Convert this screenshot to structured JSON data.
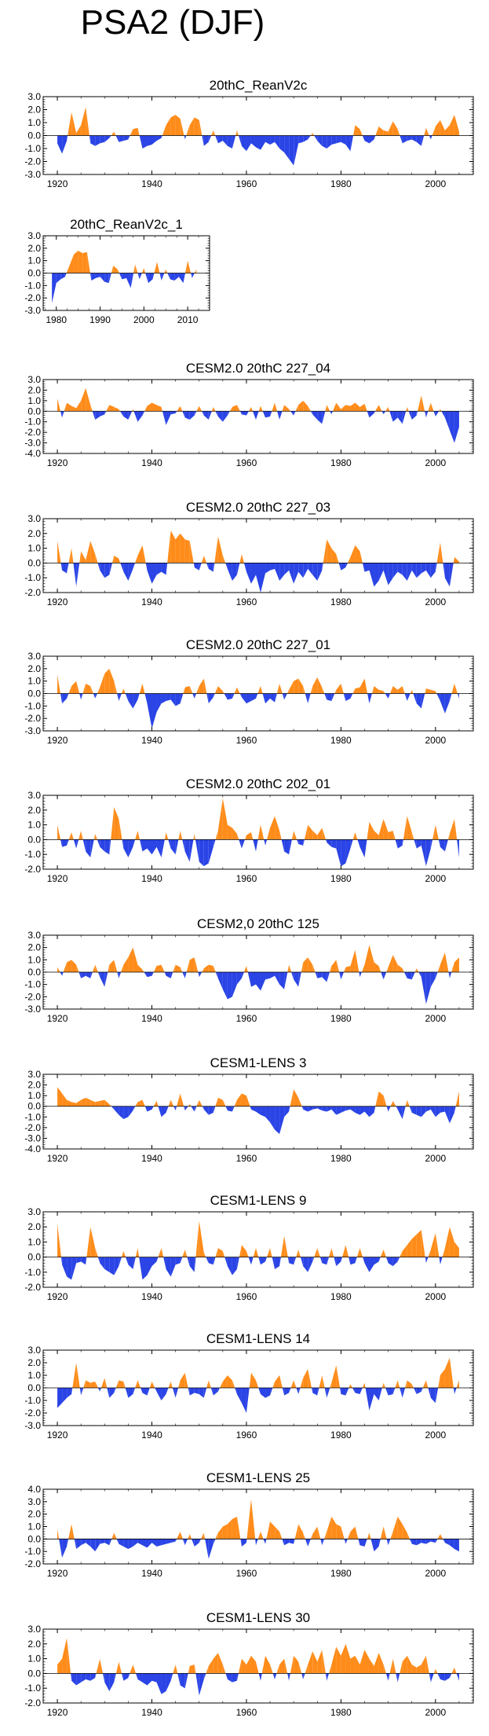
{
  "page_title": "PSA2 (DJF)",
  "colors": {
    "positive": "#ff8c1a",
    "negative": "#2a44e6",
    "axis": "#000000"
  },
  "chart_data": [
    {
      "type": "area",
      "title": "20thC_ReanV2c",
      "x_start": 1920,
      "x_end": 2005,
      "xlim": [
        1917,
        2008
      ],
      "xticks": [
        1920,
        1940,
        1960,
        1980,
        2000
      ],
      "ylim": [
        -3.0,
        3.0
      ],
      "yticks": [
        3.0,
        2.0,
        1.0,
        0.0,
        -1.0,
        -2.0,
        -3.0
      ],
      "values": [
        -0.6,
        -1.4,
        -0.4,
        1.8,
        0.2,
        0.8,
        2.2,
        -0.6,
        -0.8,
        -0.6,
        -0.5,
        -0.2,
        0.3,
        -0.5,
        -0.4,
        -0.3,
        0.5,
        0.6,
        -1.0,
        -0.8,
        -0.7,
        -0.4,
        -0.2,
        0.8,
        1.4,
        1.6,
        1.3,
        -0.3,
        0.8,
        1.4,
        1.2,
        -0.8,
        -0.5,
        0.4,
        -0.6,
        -0.4,
        -0.8,
        -1.0,
        0.4,
        -0.8,
        -1.2,
        -0.6,
        -0.9,
        -1.1,
        -0.5,
        -0.7,
        -0.5,
        -1.0,
        -1.3,
        -1.8,
        -2.3,
        -0.6,
        -0.5,
        -0.3,
        0.2,
        -0.4,
        -0.8,
        -1.0,
        -0.7,
        -0.6,
        -0.5,
        -0.7,
        -1.2,
        0.8,
        0.5,
        -0.4,
        -0.6,
        -0.3,
        0.7,
        0.4,
        0.3,
        1.1,
        0.5,
        -0.6,
        -0.4,
        -0.3,
        -0.5,
        -0.8,
        0.6,
        -0.3,
        0.7,
        1.2,
        0.4,
        0.8,
        1.6,
        0.3
      ]
    },
    {
      "type": "area",
      "title": "20thC_ReanV2c_1",
      "x_start": 1979,
      "x_end": 2012,
      "xlim": [
        1977,
        2015
      ],
      "xticks": [
        1980,
        1990,
        2000,
        2010
      ],
      "ylim": [
        -3.0,
        3.0
      ],
      "yticks": [
        3.0,
        2.0,
        1.0,
        0.0,
        -1.0,
        -2.0,
        -3.0
      ],
      "values": [
        -2.4,
        -0.8,
        -0.5,
        -0.3,
        0.6,
        1.5,
        1.8,
        1.6,
        1.7,
        -0.6,
        -0.4,
        -0.3,
        -0.7,
        -0.8,
        0.6,
        0.3,
        -0.5,
        -0.4,
        -1.2,
        0.7,
        -0.5,
        0.4,
        -0.8,
        -0.5,
        0.9,
        -0.6,
        0.3,
        -0.5,
        -0.6,
        -0.3,
        -0.8,
        1.0,
        -0.4,
        0.3
      ]
    },
    {
      "type": "area",
      "title": "CESM2.0 20thC 227_04",
      "x_start": 1920,
      "x_end": 2005,
      "xlim": [
        1917,
        2008
      ],
      "xticks": [
        1920,
        1940,
        1960,
        1980,
        2000
      ],
      "ylim": [
        -4.0,
        3.0
      ],
      "yticks": [
        3.0,
        2.0,
        1.0,
        0.0,
        -1.0,
        -2.0,
        -3.0,
        -4.0
      ],
      "values": [
        1.2,
        -0.6,
        0.8,
        0.5,
        0.3,
        1.0,
        2.2,
        0.6,
        -0.8,
        -0.5,
        -0.3,
        0.6,
        0.4,
        0.2,
        -0.5,
        -0.8,
        0.2,
        -1.0,
        -0.4,
        0.5,
        0.8,
        0.6,
        0.4,
        -1.3,
        -0.3,
        -0.2,
        0.5,
        -0.6,
        -0.8,
        -0.4,
        0.5,
        -0.4,
        -0.8,
        0.4,
        -0.5,
        -1.0,
        -0.4,
        0.4,
        0.6,
        -0.3,
        -0.4,
        0.4,
        -0.8,
        0.5,
        -0.6,
        -0.5,
        0.8,
        -0.8,
        0.6,
        0.2,
        -0.4,
        0.6,
        1.0,
        0.5,
        -0.3,
        -0.8,
        -1.2,
        0.6,
        -0.3,
        0.8,
        0.2,
        0.6,
        0.5,
        0.8,
        0.4,
        0.7,
        -0.6,
        -0.2,
        0.6,
        -0.3,
        0.4,
        -1.0,
        -0.6,
        -1.2,
        0.4,
        -0.8,
        -0.4,
        1.5,
        -0.6,
        0.8,
        -0.5,
        0.2,
        -0.6,
        -1.8,
        -3.0,
        -1.5
      ]
    },
    {
      "type": "area",
      "title": "CESM2.0 20thC 227_03",
      "x_start": 1920,
      "x_end": 2005,
      "xlim": [
        1917,
        2008
      ],
      "xticks": [
        1920,
        1940,
        1960,
        1980,
        2000
      ],
      "ylim": [
        -2.0,
        3.0
      ],
      "yticks": [
        3.0,
        2.0,
        1.0,
        0.0,
        -1.0,
        -2.0
      ],
      "values": [
        1.5,
        -0.5,
        -0.7,
        1.0,
        -1.6,
        0.8,
        0.2,
        1.5,
        0.6,
        -0.5,
        -1.0,
        -0.8,
        0.5,
        0.3,
        -0.6,
        -1.2,
        -0.4,
        0.5,
        1.2,
        -0.5,
        -1.4,
        -0.8,
        -0.6,
        -0.8,
        2.2,
        1.6,
        2.0,
        1.6,
        1.5,
        -0.3,
        -0.5,
        0.5,
        -0.4,
        -0.6,
        1.8,
        0.5,
        -0.4,
        -1.2,
        -0.8,
        0.6,
        -0.6,
        -1.4,
        -0.8,
        -2.0,
        -0.7,
        -0.5,
        -0.4,
        -1.2,
        -0.8,
        -0.5,
        -1.4,
        -0.6,
        -1.0,
        -0.4,
        -0.8,
        -1.2,
        -0.5,
        1.6,
        1.0,
        0.6,
        -0.5,
        -0.3,
        0.4,
        1.2,
        0.8,
        -0.6,
        -0.5,
        -1.6,
        -1.2,
        -0.5,
        -1.5,
        -1.0,
        -0.6,
        -0.8,
        -1.2,
        -0.5,
        -1.0,
        -0.7,
        -0.5,
        -1.0,
        -0.6,
        1.4,
        -1.0,
        -1.6,
        0.4,
        0.1
      ]
    },
    {
      "type": "area",
      "title": "CESM2.0 20thC 227_01",
      "x_start": 1920,
      "x_end": 2005,
      "xlim": [
        1917,
        2008
      ],
      "xticks": [
        1920,
        1940,
        1960,
        1980,
        2000
      ],
      "ylim": [
        -3.0,
        3.0
      ],
      "yticks": [
        3.0,
        2.0,
        1.0,
        0.0,
        -1.0,
        -2.0,
        -3.0
      ],
      "values": [
        1.5,
        -0.8,
        -0.4,
        0.6,
        1.0,
        -0.5,
        0.8,
        0.6,
        -0.4,
        0.5,
        1.6,
        2.0,
        1.0,
        -0.6,
        0.4,
        -0.6,
        -1.2,
        -0.5,
        0.8,
        -0.8,
        -2.8,
        -1.5,
        -0.8,
        -0.6,
        -0.5,
        -1.0,
        -0.8,
        0.5,
        0.6,
        -0.4,
        0.6,
        1.2,
        -0.8,
        -0.3,
        0.6,
        0.2,
        -0.5,
        -0.4,
        0.5,
        -0.3,
        -0.8,
        -0.6,
        -0.4,
        0.6,
        -0.8,
        -0.4,
        -0.7,
        0.8,
        -0.5,
        0.3,
        1.0,
        1.2,
        0.6,
        -0.8,
        0.6,
        1.3,
        0.5,
        -0.5,
        -0.6,
        0.3,
        0.8,
        -0.6,
        -0.4,
        0.4,
        0.5,
        1.2,
        -0.8,
        0.6,
        0.3,
        0.2,
        -0.4,
        0.6,
        0.3,
        0.6,
        -0.6,
        0.3,
        -0.8,
        -1.2,
        0.4,
        0.3,
        0.2,
        -0.6,
        -1.6,
        -0.6,
        0.8,
        -0.4
      ]
    },
    {
      "type": "area",
      "title": "CESM2.0 20thC 202_01",
      "x_start": 1920,
      "x_end": 2005,
      "xlim": [
        1917,
        2008
      ],
      "xticks": [
        1920,
        1940,
        1960,
        1980,
        2000
      ],
      "ylim": [
        -2.0,
        3.0
      ],
      "yticks": [
        3.0,
        2.0,
        1.0,
        0.0,
        -1.0,
        -2.0
      ],
      "values": [
        1.0,
        -0.5,
        -0.4,
        0.5,
        -0.6,
        0.6,
        -0.8,
        -1.2,
        0.4,
        -0.5,
        -0.8,
        -1.0,
        2.2,
        1.4,
        -0.6,
        -1.2,
        -0.5,
        0.6,
        -0.8,
        -0.6,
        -1.0,
        -0.5,
        -1.2,
        0.5,
        -0.6,
        -1.0,
        0.6,
        -0.8,
        -1.5,
        0.4,
        -1.5,
        -1.8,
        -1.6,
        -0.5,
        0.6,
        2.8,
        1.0,
        0.8,
        0.4,
        -0.6,
        0.3,
        0.5,
        -0.8,
        1.0,
        -0.4,
        0.8,
        1.6,
        0.6,
        -0.8,
        -1.0,
        0.6,
        -0.3,
        -0.4,
        1.0,
        0.6,
        0.3,
        0.8,
        -0.2,
        -0.5,
        -0.6,
        -1.8,
        -1.6,
        -0.6,
        0.5,
        -0.5,
        -1.2,
        1.2,
        0.6,
        0.3,
        1.4,
        0.5,
        0.6,
        -0.6,
        -0.4,
        1.6,
        0.5,
        -0.6,
        -0.4,
        -1.8,
        -0.6,
        1.0,
        -0.5,
        -0.8,
        0.4,
        1.4,
        -1.2
      ]
    },
    {
      "type": "area",
      "title": "CESM2,0 20thC 125",
      "x_start": 1920,
      "x_end": 2005,
      "xlim": [
        1917,
        2008
      ],
      "xticks": [
        1920,
        1940,
        1960,
        1980,
        2000
      ],
      "ylim": [
        -3.0,
        3.0
      ],
      "yticks": [
        3.0,
        2.0,
        1.0,
        0.0,
        -1.0,
        -2.0,
        -3.0
      ],
      "values": [
        0.4,
        -0.3,
        0.8,
        1.0,
        0.6,
        -0.5,
        -0.3,
        -0.5,
        0.6,
        -0.4,
        -1.2,
        0.6,
        1.0,
        -0.5,
        0.6,
        1.2,
        2.0,
        0.6,
        0.2,
        -0.4,
        -0.3,
        0.5,
        0.6,
        -0.3,
        -0.5,
        0.6,
        0.4,
        -0.5,
        1.0,
        1.2,
        -0.4,
        0.3,
        0.6,
        0.5,
        -0.5,
        -1.4,
        -2.2,
        -2.0,
        -1.0,
        -0.5,
        0.5,
        -1.2,
        -1.0,
        -1.5,
        -0.6,
        -0.5,
        -0.3,
        -1.0,
        -1.4,
        0.6,
        -0.6,
        -1.2,
        0.8,
        1.2,
        0.6,
        -0.5,
        -0.4,
        -0.8,
        0.5,
        1.0,
        -0.6,
        0.4,
        0.5,
        1.8,
        -0.4,
        0.6,
        2.2,
        0.8,
        0.5,
        -0.6,
        0.4,
        1.4,
        0.6,
        0.3,
        -0.5,
        -0.6,
        0.3,
        -0.4,
        -2.6,
        -1.2,
        -0.5,
        0.6,
        1.6,
        -0.5,
        0.8,
        1.2
      ]
    },
    {
      "type": "area",
      "title": "CESM1-LENS 3",
      "x_start": 1920,
      "x_end": 2005,
      "xlim": [
        1917,
        2008
      ],
      "xticks": [
        1920,
        1940,
        1960,
        1980,
        2000
      ],
      "ylim": [
        -4.0,
        3.0
      ],
      "yticks": [
        3.0,
        2.0,
        1.0,
        0.0,
        -1.0,
        -2.0,
        -3.0,
        -4.0
      ],
      "values": [
        1.8,
        1.2,
        0.6,
        0.4,
        0.3,
        0.6,
        0.8,
        0.6,
        0.4,
        0.5,
        0.6,
        0.2,
        -0.3,
        -0.8,
        -1.2,
        -1.0,
        -0.4,
        0.4,
        0.6,
        -0.5,
        -0.3,
        0.5,
        -1.0,
        -0.6,
        0.6,
        -0.4,
        1.2,
        -0.4,
        0.2,
        -0.5,
        0.6,
        -0.3,
        -0.8,
        -0.6,
        0.8,
        0.6,
        -0.4,
        -0.5,
        0.6,
        1.2,
        1.0,
        -0.3,
        -0.5,
        -0.8,
        -1.0,
        -1.5,
        -2.2,
        -2.6,
        -1.0,
        -0.5,
        1.6,
        0.8,
        -0.3,
        -0.5,
        -0.3,
        -0.2,
        -0.4,
        -0.5,
        -0.3,
        -0.8,
        -0.6,
        -0.4,
        -0.3,
        -0.6,
        -0.8,
        -0.5,
        -1.0,
        -0.6,
        1.4,
        1.0,
        -0.5,
        0.5,
        -0.3,
        -1.2,
        0.6,
        -0.6,
        -0.8,
        -1.0,
        -0.5,
        -0.3,
        -1.0,
        -0.6,
        -0.5,
        -1.6,
        -0.6,
        1.4
      ]
    },
    {
      "type": "area",
      "title": "CESM1-LENS 9",
      "x_start": 1920,
      "x_end": 2005,
      "xlim": [
        1917,
        2008
      ],
      "xticks": [
        1920,
        1940,
        1960,
        1980,
        2000
      ],
      "ylim": [
        -2.0,
        3.0
      ],
      "yticks": [
        3.0,
        2.0,
        1.0,
        0.0,
        -1.0,
        -2.0
      ],
      "values": [
        2.2,
        -0.5,
        -1.3,
        -1.5,
        -0.4,
        -0.3,
        -0.5,
        2.0,
        0.6,
        -0.4,
        -0.8,
        -1.0,
        -1.2,
        -0.6,
        0.4,
        -0.5,
        -0.8,
        0.6,
        -1.5,
        -1.2,
        -0.6,
        -0.3,
        0.6,
        -0.8,
        -1.3,
        -0.5,
        -0.4,
        0.5,
        -0.6,
        -1.0,
        2.4,
        0.3,
        -0.4,
        -0.5,
        0.6,
        0.4,
        -0.6,
        -1.2,
        -0.8,
        0.8,
        0.4,
        -0.5,
        0.6,
        -0.5,
        -0.3,
        0.6,
        -0.8,
        -0.6,
        1.4,
        -0.4,
        -0.5,
        0.5,
        -0.6,
        -1.0,
        -0.3,
        0.6,
        -0.4,
        -0.5,
        0.6,
        -0.6,
        -0.3,
        0.8,
        -0.5,
        -0.4,
        0.6,
        -0.4,
        -1.0,
        -0.5,
        -0.3,
        0.5,
        -0.4,
        -0.6,
        -0.3,
        0.4,
        0.8,
        1.2,
        1.5,
        1.8,
        -0.4,
        0.5,
        1.6,
        -0.5,
        0.6,
        2.0,
        1.0,
        0.6
      ]
    },
    {
      "type": "area",
      "title": "CESM1-LENS 14",
      "x_start": 1920,
      "x_end": 2005,
      "xlim": [
        1917,
        2008
      ],
      "xticks": [
        1920,
        1940,
        1960,
        1980,
        2000
      ],
      "ylim": [
        -3.0,
        3.0
      ],
      "yticks": [
        3.0,
        2.0,
        1.0,
        0.0,
        -1.0,
        -2.0,
        -3.0
      ],
      "values": [
        -1.6,
        -1.2,
        -0.8,
        -0.5,
        2.0,
        -0.6,
        0.6,
        0.4,
        0.5,
        -0.3,
        0.8,
        -0.8,
        -0.4,
        0.6,
        0.5,
        -0.8,
        -0.5,
        0.6,
        -0.4,
        -0.6,
        0.5,
        -0.3,
        -1.0,
        -0.5,
        0.5,
        -0.8,
        0.6,
        1.2,
        -0.6,
        -0.4,
        -0.5,
        -0.8,
        0.6,
        -0.6,
        -0.3,
        0.5,
        1.0,
        0.6,
        -0.5,
        -1.2,
        -2.0,
        1.2,
        0.6,
        -0.5,
        -0.8,
        -0.6,
        0.5,
        1.0,
        -0.6,
        -0.4,
        0.6,
        -0.5,
        0.8,
        1.5,
        -0.4,
        -0.6,
        1.0,
        -0.8,
        0.4,
        1.8,
        -0.5,
        -0.6,
        0.3,
        -0.4,
        -0.5,
        0.4,
        -1.8,
        -0.5,
        -1.0,
        0.4,
        -0.6,
        -0.5,
        0.6,
        -0.8,
        0.6,
        0.3,
        -0.5,
        -0.3,
        0.6,
        -0.8,
        -1.2,
        1.0,
        1.5,
        2.4,
        -0.5,
        0.6
      ]
    },
    {
      "type": "area",
      "title": "CESM1-LENS 25",
      "x_start": 1920,
      "x_end": 2005,
      "xlim": [
        1917,
        2008
      ],
      "xticks": [
        1920,
        1940,
        1960,
        1980,
        2000
      ],
      "ylim": [
        -2.0,
        4.0
      ],
      "yticks": [
        4.0,
        3.0,
        2.0,
        1.0,
        0.0,
        -1.0,
        -2.0
      ],
      "values": [
        0.8,
        -1.5,
        -0.6,
        1.2,
        -0.8,
        -0.5,
        -0.3,
        -0.6,
        -1.0,
        -0.4,
        -0.3,
        -0.5,
        0.5,
        -0.4,
        -0.6,
        -0.8,
        -0.6,
        -0.3,
        -0.5,
        -0.7,
        -0.3,
        -0.6,
        -0.5,
        -0.4,
        -0.3,
        -0.2,
        0.6,
        -0.5,
        0.4,
        -0.6,
        -0.3,
        0.5,
        -1.6,
        -0.4,
        0.5,
        1.0,
        1.2,
        1.6,
        1.8,
        -0.6,
        -0.3,
        3.2,
        -0.5,
        0.6,
        -0.4,
        1.4,
        1.0,
        0.6,
        -0.5,
        -0.3,
        -0.4,
        1.2,
        0.5,
        -0.6,
        0.4,
        1.0,
        -0.5,
        0.6,
        1.8,
        1.2,
        1.0,
        -0.4,
        0.6,
        1.0,
        -0.5,
        -0.6,
        0.5,
        -1.0,
        -0.6,
        1.0,
        -0.5,
        0.6,
        1.8,
        1.2,
        0.5,
        -0.4,
        -0.5,
        -0.3,
        -0.4,
        -0.2,
        -0.3,
        0.4,
        -0.3,
        -0.5,
        -0.8,
        -1.0
      ]
    },
    {
      "type": "area",
      "title": "CESM1-LENS 30",
      "x_start": 1920,
      "x_end": 2005,
      "xlim": [
        1917,
        2008
      ],
      "xticks": [
        1920,
        1940,
        1960,
        1980,
        2000
      ],
      "ylim": [
        -2.0,
        3.0
      ],
      "yticks": [
        3.0,
        2.0,
        1.0,
        0.0,
        -1.0,
        -2.0
      ],
      "values": [
        0.6,
        1.0,
        2.4,
        -0.5,
        -0.8,
        -0.6,
        -0.4,
        -0.5,
        -0.3,
        1.0,
        -0.6,
        -1.2,
        -0.6,
        0.8,
        -0.5,
        -0.3,
        0.6,
        -0.4,
        -0.6,
        -0.8,
        -0.5,
        -0.6,
        -1.4,
        -1.2,
        -0.5,
        0.6,
        -0.8,
        -1.0,
        0.5,
        0.6,
        -1.5,
        -0.4,
        0.5,
        1.0,
        1.4,
        0.6,
        -0.4,
        -0.6,
        -0.5,
        1.0,
        0.6,
        1.2,
        0.8,
        -0.5,
        1.2,
        0.6,
        -0.4,
        0.6,
        1.0,
        -0.5,
        1.2,
        0.8,
        -0.4,
        0.6,
        1.5,
        0.8,
        1.6,
        -0.5,
        0.6,
        1.8,
        1.2,
        2.0,
        1.0,
        1.2,
        0.6,
        1.6,
        1.0,
        0.5,
        1.4,
        0.6,
        -0.5,
        1.0,
        -0.6,
        0.8,
        1.2,
        0.6,
        0.4,
        0.6,
        1.2,
        -0.6,
        0.3,
        -0.4,
        -0.5,
        -0.3,
        0.4,
        -0.5
      ]
    }
  ]
}
